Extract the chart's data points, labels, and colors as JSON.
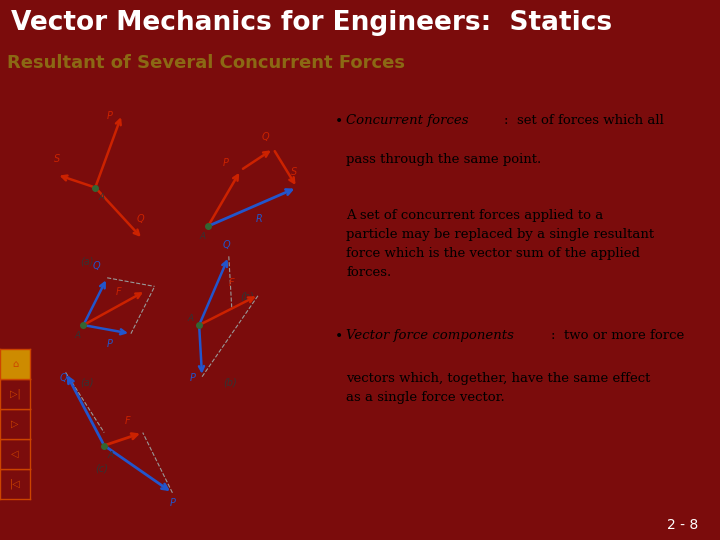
{
  "title": "Vector Mechanics for Engineers:  Statics",
  "subtitle": "Resultant of Several Concurrent Forces",
  "title_bg": "#7B0C0C",
  "subtitle_bg": "#F5F0A0",
  "body_bg": "#FFFFFF",
  "title_color": "#FFFFFF",
  "subtitle_color": "#8B6914",
  "footer_bg": "#7B0C0C",
  "footer_text": "2 - 8",
  "footer_color": "#FFFFFF",
  "left_bar_bg": "#7B0C0C",
  "nav_box_bg": "#7B0C0C",
  "nav_home_bg": "#CD8B00"
}
